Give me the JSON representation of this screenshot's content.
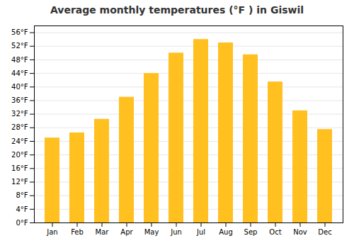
{
  "chart_data": {
    "type": "bar",
    "title": "Average monthly temperatures (°F ) in Giswil",
    "categories": [
      "Jan",
      "Feb",
      "Mar",
      "Apr",
      "May",
      "Jun",
      "Jul",
      "Aug",
      "Sep",
      "Oct",
      "Nov",
      "Dec"
    ],
    "values": [
      25.0,
      26.5,
      30.5,
      37.0,
      44.0,
      50.0,
      54.0,
      53.0,
      49.5,
      41.5,
      33.0,
      27.5
    ],
    "color": "#FFC020",
    "ylim": [
      0,
      58
    ],
    "yticks": [
      {
        "value": 0,
        "label": "0°F"
      },
      {
        "value": 4,
        "label": "4°F"
      },
      {
        "value": 8,
        "label": "8°F"
      },
      {
        "value": 12,
        "label": "12°F"
      },
      {
        "value": 16,
        "label": "16°F"
      },
      {
        "value": 20,
        "label": "20°F"
      },
      {
        "value": 24,
        "label": "24°F"
      },
      {
        "value": 28,
        "label": "28°F"
      },
      {
        "value": 32,
        "label": "32°F"
      },
      {
        "value": 36,
        "label": "36°F"
      },
      {
        "value": 40,
        "label": "40°F"
      },
      {
        "value": 44,
        "label": "44°F"
      },
      {
        "value": 48,
        "label": "48°F"
      },
      {
        "value": 52,
        "label": "52°F"
      },
      {
        "value": 56,
        "label": "56°F"
      }
    ],
    "grid": true
  }
}
